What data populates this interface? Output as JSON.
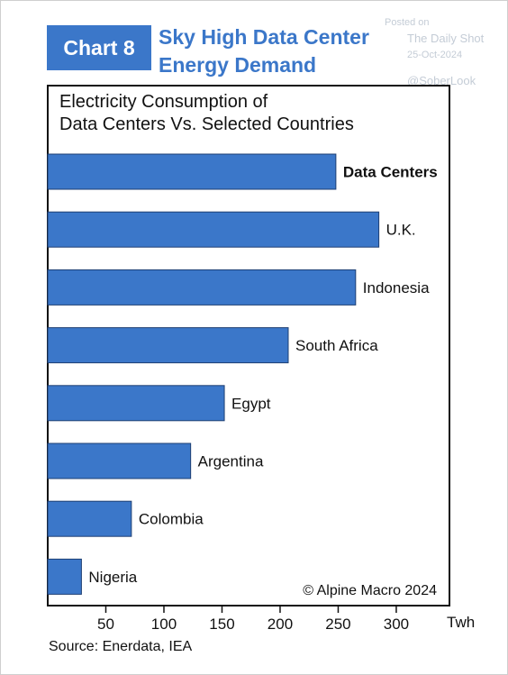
{
  "header": {
    "badge": "Chart 8",
    "title_line1": "Sky High Data Center",
    "title_line2": "Energy Demand"
  },
  "watermark": {
    "posted_on": "Posted on",
    "publisher": "The Daily Shot",
    "date": "25-Oct-2024",
    "handle": "@SoberLook"
  },
  "chart_data": {
    "type": "bar",
    "orientation": "horizontal",
    "title_line1": "Electricity Consumption of",
    "title_line2": "Data Centers Vs. Selected Countries",
    "categories": [
      "Data Centers",
      "U.K.",
      "Indonesia",
      "South Africa",
      "Egypt",
      "Argentina",
      "Colombia",
      "Nigeria"
    ],
    "values": [
      248,
      285,
      265,
      207,
      152,
      123,
      72,
      29
    ],
    "highlight": "Data Centers",
    "x_ticks": [
      "50",
      "100",
      "150",
      "200",
      "250",
      "300"
    ],
    "x_tick_values": [
      50,
      100,
      150,
      200,
      250,
      300
    ],
    "xlim": [
      0,
      345
    ],
    "unit": "Twh",
    "bar_color": "#3b77c9",
    "copyright": "© Alpine Macro 2024",
    "grid": false
  },
  "footer": {
    "source": "Source: Enerdata, IEA"
  }
}
